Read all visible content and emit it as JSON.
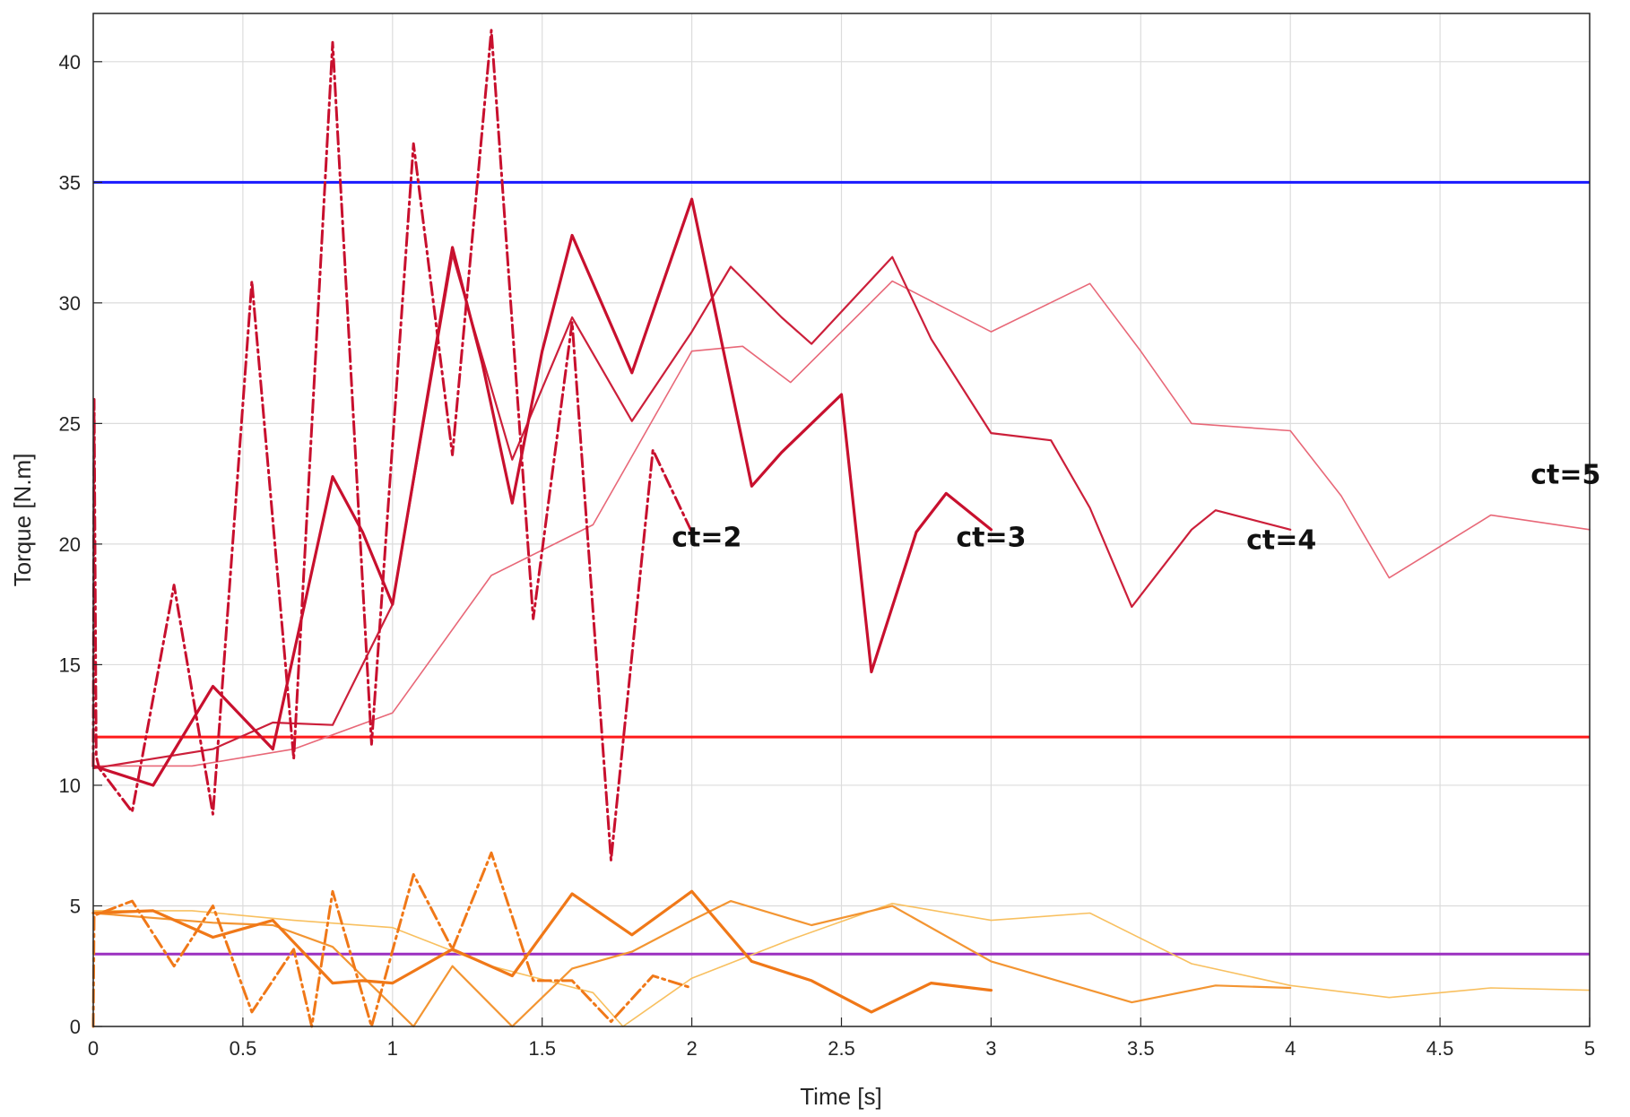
{
  "chart_data": {
    "type": "line",
    "title": "",
    "xlabel": "Time [s]",
    "ylabel": "Torque [N.m]",
    "xlim": [
      0,
      5
    ],
    "ylim": [
      0,
      42
    ],
    "xticks": [
      0,
      0.5,
      1,
      1.5,
      2,
      2.5,
      3,
      3.5,
      4,
      4.5,
      5
    ],
    "xtick_labels": [
      "0",
      "0.5",
      "1",
      "1.5",
      "2",
      "2.5",
      "3",
      "3.5",
      "4",
      "4.5",
      "5"
    ],
    "yticks": [
      0,
      5,
      10,
      15,
      20,
      25,
      30,
      35,
      40
    ],
    "ytick_labels": [
      "0",
      "5",
      "10",
      "15",
      "20",
      "25",
      "30",
      "35",
      "40"
    ],
    "grid": true,
    "legend": "none",
    "reference_lines": [
      {
        "y": 35,
        "color": "#1a1aff"
      },
      {
        "y": 12,
        "color": "#ff1a1a"
      },
      {
        "y": 3,
        "color": "#9b30c0"
      }
    ],
    "annotations": [
      {
        "text": "ct=2",
        "x": 2.05,
        "y": 19.9
      },
      {
        "text": "ct=3",
        "x": 3.0,
        "y": 19.9
      },
      {
        "text": "ct=4",
        "x": 3.97,
        "y": 19.8
      },
      {
        "text": "ct=5",
        "x": 4.92,
        "y": 22.5
      }
    ],
    "series": [
      {
        "color": "#c8102e",
        "style": "dashdot",
        "weight": 3,
        "x": [
          0,
          0.003,
          0.01,
          0.02,
          0.13,
          0.27,
          0.4,
          0.53,
          0.67,
          0.8,
          0.93,
          1.07,
          1.2,
          1.33,
          1.47,
          1.6,
          1.73,
          1.87,
          2.0
        ],
        "y": [
          10.8,
          26.0,
          11.2,
          10.7,
          8.9,
          18.3,
          8.8,
          30.9,
          11.1,
          40.8,
          11.7,
          36.6,
          23.7,
          41.3,
          16.9,
          29.2,
          6.9,
          23.9,
          20.5
        ]
      },
      {
        "color": "#c8102e",
        "style": "solid",
        "weight": 3.2,
        "x": [
          0,
          0.2,
          0.4,
          0.6,
          0.8,
          0.9,
          1.0,
          1.2,
          1.3,
          1.4,
          1.5,
          1.6,
          1.8,
          2.0,
          2.2,
          2.3,
          2.5,
          2.6,
          2.75,
          2.85,
          3.0
        ],
        "y": [
          10.8,
          10.0,
          14.1,
          11.5,
          22.8,
          20.5,
          17.5,
          32.3,
          27.5,
          21.7,
          28.0,
          32.8,
          27.1,
          34.3,
          22.4,
          23.8,
          26.2,
          14.7,
          20.5,
          22.1,
          20.6
        ]
      },
      {
        "color": "#cc1f3a",
        "style": "solid",
        "weight": 2.2,
        "x": [
          0,
          0.4,
          0.6,
          0.8,
          1.0,
          1.2,
          1.4,
          1.6,
          1.8,
          2.0,
          2.13,
          2.3,
          2.4,
          2.67,
          2.8,
          3.0,
          3.2,
          3.33,
          3.47,
          3.67,
          3.75,
          4.0
        ],
        "y": [
          10.7,
          11.5,
          12.6,
          12.5,
          17.5,
          32.0,
          23.5,
          29.4,
          25.1,
          28.8,
          31.5,
          29.4,
          28.3,
          31.9,
          28.5,
          24.6,
          24.3,
          21.5,
          17.4,
          20.6,
          21.4,
          20.6
        ]
      },
      {
        "color": "#e86878",
        "style": "solid",
        "weight": 1.6,
        "x": [
          0,
          0.33,
          0.67,
          1.0,
          1.33,
          1.67,
          2.0,
          2.17,
          2.33,
          2.67,
          3.0,
          3.33,
          3.5,
          3.67,
          4.0,
          4.17,
          4.33,
          4.67,
          5.0
        ],
        "y": [
          10.8,
          10.8,
          11.5,
          13.0,
          18.7,
          20.8,
          28.0,
          28.2,
          26.7,
          30.9,
          28.8,
          30.8,
          28.0,
          25.0,
          24.7,
          22.0,
          18.6,
          21.2,
          20.6
        ]
      },
      {
        "color": "#f07818",
        "style": "dashdot",
        "weight": 3,
        "x": [
          0,
          0.003,
          0.13,
          0.27,
          0.4,
          0.53,
          0.67,
          0.73,
          0.8,
          0.93,
          1.07,
          1.2,
          1.33,
          1.47,
          1.6,
          1.73,
          1.87,
          2.0
        ],
        "y": [
          0,
          4.6,
          5.2,
          2.5,
          5.0,
          0.6,
          3.2,
          0.0,
          5.6,
          0.0,
          6.3,
          3.2,
          7.2,
          1.9,
          1.9,
          0.2,
          2.1,
          1.6
        ]
      },
      {
        "color": "#f07818",
        "style": "solid",
        "weight": 3.2,
        "x": [
          0,
          0.2,
          0.4,
          0.6,
          0.8,
          0.9,
          1.0,
          1.2,
          1.4,
          1.6,
          1.8,
          2.0,
          2.2,
          2.4,
          2.6,
          2.8,
          3.0
        ],
        "y": [
          4.7,
          4.8,
          3.7,
          4.4,
          1.8,
          1.9,
          1.8,
          3.2,
          2.1,
          5.5,
          3.8,
          5.6,
          2.7,
          1.9,
          0.6,
          1.8,
          1.5
        ]
      },
      {
        "color": "#f39532",
        "style": "solid",
        "weight": 2.2,
        "x": [
          0,
          0.4,
          0.6,
          0.8,
          1.07,
          1.2,
          1.4,
          1.6,
          1.8,
          2.0,
          2.13,
          2.4,
          2.67,
          3.0,
          3.47,
          3.75,
          4.0
        ],
        "y": [
          4.7,
          4.3,
          4.2,
          3.3,
          0.0,
          2.5,
          0.0,
          2.4,
          3.1,
          4.4,
          5.2,
          4.2,
          5.0,
          2.7,
          1.0,
          1.7,
          1.6
        ]
      },
      {
        "color": "#f8c060",
        "style": "solid",
        "weight": 1.6,
        "x": [
          0,
          0.33,
          0.67,
          1.0,
          1.33,
          1.67,
          1.77,
          2.0,
          2.33,
          2.67,
          3.0,
          3.33,
          3.67,
          4.0,
          4.33,
          4.67,
          5.0
        ],
        "y": [
          4.8,
          4.8,
          4.4,
          4.1,
          2.5,
          1.4,
          0.0,
          2.0,
          3.6,
          5.1,
          4.4,
          4.7,
          2.6,
          1.7,
          1.2,
          1.6,
          1.5
        ]
      }
    ]
  }
}
